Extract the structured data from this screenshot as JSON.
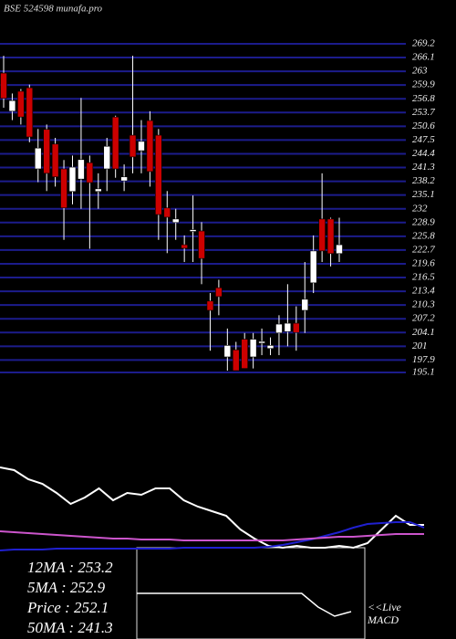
{
  "chart_data": [
    {
      "type": "candlestick",
      "title": "BSE 524598 munafa.pro",
      "ylim": [
        195.1,
        269.2
      ],
      "yticks": [
        269.2,
        266.1,
        263.0,
        259.9,
        256.8,
        253.7,
        250.6,
        247.5,
        244.4,
        241.3,
        238.2,
        235.1,
        232.0,
        228.9,
        225.8,
        222.7,
        219.6,
        216.5,
        213.4,
        210.3,
        207.2,
        204.1,
        201.0,
        197.9,
        195.1
      ],
      "grid": true,
      "up_color": "#ffffff",
      "down_color": "#cc0000",
      "grid_color": "#1c1c8c",
      "open": [
        262.6,
        254.0,
        258.5,
        259.3,
        241.0,
        249.9,
        246.6,
        241.0,
        235.9,
        238.7,
        242.4,
        235.9,
        241.0,
        252.7,
        238.3,
        248.6,
        245.1,
        251.9,
        248.6,
        232.2,
        228.9,
        223.9,
        227.0,
        227.0,
        211.2,
        214.2,
        198.6,
        200.2,
        202.6,
        198.6,
        201.9,
        200.5,
        204.0,
        204.3,
        206.2,
        209.1,
        215.3,
        229.7,
        229.7,
        221.9
      ],
      "high": [
        266.5,
        258.0,
        259.0,
        260.0,
        250.0,
        251.0,
        248.0,
        243.0,
        244.0,
        257.0,
        244.0,
        240.0,
        248.0,
        253.0,
        242.0,
        266.5,
        252.0,
        254.0,
        250.0,
        236.0,
        232.0,
        226.0,
        235.0,
        229.0,
        213.0,
        216.0,
        205.0,
        202.0,
        204.0,
        204.0,
        205.0,
        203.0,
        208.0,
        215.0,
        210.0,
        220.0,
        226.0,
        240.0,
        230.0,
        230.0
      ],
      "low": [
        254.8,
        252.0,
        251.0,
        247.0,
        238.0,
        236.0,
        237.0,
        225.0,
        233.0,
        232.0,
        223.0,
        232.0,
        236.0,
        239.0,
        236.0,
        240.0,
        240.0,
        237.0,
        225.0,
        222.0,
        225.0,
        220.0,
        220.0,
        215.0,
        200.0,
        208.0,
        195.5,
        195.5,
        196.0,
        196.0,
        199.0,
        199.0,
        199.0,
        201.0,
        200.0,
        204.0,
        213.0,
        220.0,
        219.0,
        220.0
      ],
      "close": [
        256.9,
        256.4,
        252.7,
        248.2,
        245.7,
        240.0,
        239.2,
        232.2,
        241.4,
        243.1,
        237.9,
        236.5,
        246.1,
        241.0,
        239.2,
        243.7,
        247.2,
        240.4,
        230.7,
        230.1,
        229.7,
        223.1,
        227.3,
        220.8,
        209.1,
        212.2,
        201.2,
        195.5,
        196.0,
        202.6,
        202.1,
        201.2,
        206.0,
        206.2,
        204.1,
        211.6,
        222.5,
        222.5,
        221.9,
        223.9
      ],
      "annotations": [
        "12MA : 253.2",
        "5MA : 252.9",
        "Price  : 252.1",
        "50MA : 241.3"
      ]
    },
    {
      "type": "line",
      "ylim": [
        0,
        100
      ],
      "series": [
        {
          "color": "#ffffff",
          "values": [
            88,
            85,
            75,
            70,
            60,
            48,
            55,
            65,
            52,
            60,
            58,
            65,
            65,
            52,
            45,
            40,
            35,
            20,
            10,
            2,
            0,
            2,
            0,
            0,
            2,
            0,
            5,
            20,
            35,
            25,
            25
          ]
        },
        {
          "color": "#2020d0",
          "values": [
            -3,
            -2,
            -2,
            -2,
            -1,
            -1,
            -1,
            -1,
            -1,
            -1,
            -1,
            -1,
            -1,
            0,
            0,
            0,
            0,
            0,
            0,
            1,
            3,
            6,
            9,
            13,
            17,
            22,
            26,
            27,
            28,
            28,
            22
          ]
        },
        {
          "color": "#cc55cc",
          "values": [
            18,
            17,
            16,
            15,
            14,
            13,
            12,
            11,
            10,
            10,
            9,
            9,
            9,
            8,
            8,
            8,
            8,
            8,
            8,
            8,
            8,
            9,
            10,
            11,
            12,
            12,
            13,
            14,
            15,
            15,
            15
          ]
        }
      ]
    },
    {
      "type": "macd",
      "ylim": [
        -10,
        10
      ],
      "label": "<<Live",
      "sublabel": "MACD",
      "series": [
        {
          "color": "#ffffff",
          "values": [
            0,
            0,
            0,
            0,
            0,
            0,
            0,
            0,
            0,
            0,
            0,
            -3,
            -5,
            -4
          ]
        }
      ]
    }
  ]
}
